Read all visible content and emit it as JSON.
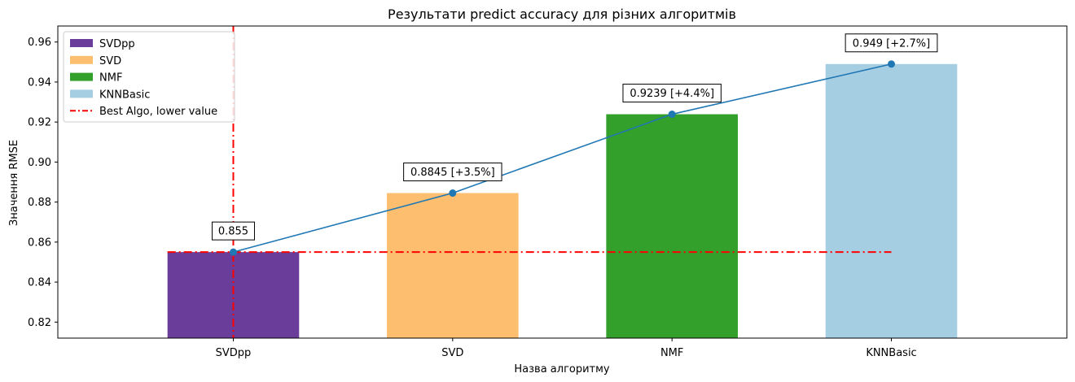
{
  "chart_data": {
    "type": "bar",
    "title": "Результати predict accuracy для різних алгоритмів",
    "xlabel": "Назва алгоритму",
    "ylabel": "Значення RMSE",
    "ylim": [
      0.812,
      0.968
    ],
    "yticks": [
      "0.82",
      "0.84",
      "0.86",
      "0.88",
      "0.90",
      "0.92",
      "0.94",
      "0.96"
    ],
    "grid": false,
    "legend_position": "top-left",
    "categories": [
      "SVDpp",
      "SVD",
      "NMF",
      "KNNBasic"
    ],
    "values": [
      0.855,
      0.8845,
      0.9239,
      0.949
    ],
    "bar_colors": [
      "#6a3d9a",
      "#fdbf6f",
      "#33a02c",
      "#a6cee3"
    ],
    "annotations": [
      "0.855",
      "0.8845 [+3.5%]",
      "0.9239 [+4.4%]",
      "0.949 [+2.7%]"
    ],
    "line_series": {
      "values": [
        0.855,
        0.8845,
        0.9239,
        0.949
      ],
      "color": "#1f77b4"
    },
    "best_line": {
      "label": "Best Algo, lower value",
      "value": 0.855,
      "category": "SVDpp",
      "color": "#ff0000"
    },
    "legend": [
      {
        "label": "SVDpp",
        "color": "#6a3d9a",
        "kind": "patch"
      },
      {
        "label": "SVD",
        "color": "#fdbf6f",
        "kind": "patch"
      },
      {
        "label": "NMF",
        "color": "#33a02c",
        "kind": "patch"
      },
      {
        "label": "KNNBasic",
        "color": "#a6cee3",
        "kind": "patch"
      },
      {
        "label": "Best Algo, lower value",
        "color": "#ff0000",
        "kind": "dashdot"
      }
    ]
  }
}
